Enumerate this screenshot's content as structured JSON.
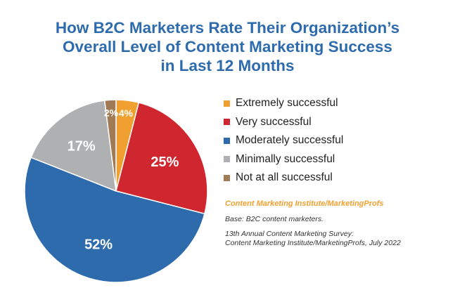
{
  "title_lines": [
    "How B2C Marketers Rate Their Organization’s",
    "Overall Level of Content Marketing Success",
    "in Last 12 Months"
  ],
  "chart_data": {
    "type": "pie",
    "title": "How B2C Marketers Rate Their Organization’s Overall Level of Content Marketing Success in Last 12 Months",
    "legend_position": "right",
    "slices": [
      {
        "label": "Extremely successful",
        "value": 4,
        "display": "4%",
        "color": "#f0a030"
      },
      {
        "label": "Very successful",
        "value": 25,
        "display": "25%",
        "color": "#d0262f"
      },
      {
        "label": "Moderately successful",
        "value": 52,
        "display": "52%",
        "color": "#2e6bad"
      },
      {
        "label": "Minimally successful",
        "value": 17,
        "display": "17%",
        "color": "#afb0b2"
      },
      {
        "label": "Not at all successful",
        "value": 2,
        "display": "2%",
        "color": "#a17b55"
      }
    ]
  },
  "source": {
    "title": "Content Marketing Institute/MarketingProfs",
    "base": "Base: B2C content marketers.",
    "survey_lines": [
      "13th Annual Content Marketing Survey:",
      "Content Marketing Institute/MarketingProfs, July 2022"
    ]
  }
}
